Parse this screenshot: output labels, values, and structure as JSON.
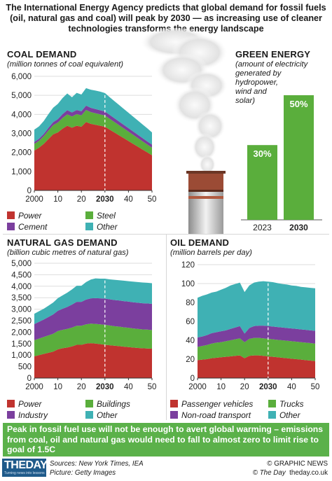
{
  "headline": "The International Energy Agency predicts that global demand for fossil fuels (oil, natural gas and coal) will peak by 2030 — as increasing use of cleaner technologies transforms the energy landscape",
  "colors": {
    "red": "#c0332f",
    "green": "#5aae3c",
    "purple": "#7b3f9e",
    "teal": "#3fb1b4",
    "banner": "#5bb14a",
    "logo_bg": "#1f5a8a"
  },
  "icons": {
    "photo": "smokestack-photo-icon",
    "logo": "the-day-logo-icon"
  },
  "coal": {
    "title": "COAL DEMAND",
    "subtitle": "(million tonnes of coal equivalent)",
    "legend": [
      {
        "name": "Power",
        "color": "#c0332f"
      },
      {
        "name": "Steel",
        "color": "#5aae3c"
      },
      {
        "name": "Cement",
        "color": "#7b3f9e"
      },
      {
        "name": "Other",
        "color": "#3fb1b4"
      }
    ]
  },
  "green": {
    "title": "GREEN ENERGY",
    "subtitle_lines": [
      "(amount of electricity",
      "generated by",
      "hydropower,",
      "wind and",
      "solar)"
    ]
  },
  "gas": {
    "title": "NATURAL GAS DEMAND",
    "subtitle": "(billion cubic metres of natural gas)",
    "legend": [
      {
        "name": "Power",
        "color": "#c0332f"
      },
      {
        "name": "Buildings",
        "color": "#5aae3c"
      },
      {
        "name": "Industry",
        "color": "#7b3f9e"
      },
      {
        "name": "Other",
        "color": "#3fb1b4"
      }
    ]
  },
  "oil": {
    "title": "OIL DEMAND",
    "subtitle": "(million barrels per day)",
    "legend": [
      {
        "name": "Passenger vehicles",
        "color": "#c0332f"
      },
      {
        "name": "Trucks",
        "color": "#5aae3c"
      },
      {
        "name": "Non-road transport",
        "color": "#7b3f9e"
      },
      {
        "name": "Other",
        "color": "#3fb1b4"
      }
    ]
  },
  "banner": "Peak in fossil fuel use will not be enough to avert global warming – emissions from coal, oil and natural gas would need to fall to almost zero to limit rise to goal of 1.5C",
  "footer": {
    "logo_text": "THEDAY",
    "logo_tagline": "Turning news into lessons",
    "sources": "Sources: New York Times, IEA",
    "picture": "Picture: Getty Images",
    "graphic_news": "© GRAPHIC NEWS",
    "the_day": "© The Day",
    "site": "theday.co.uk"
  },
  "chart_data": [
    {
      "id": "coal",
      "type": "area",
      "stacked": true,
      "title": "COAL DEMAND",
      "ylabel": "(million tonnes of coal equivalent)",
      "xlim": [
        2000,
        2050
      ],
      "ylim": [
        0,
        6000
      ],
      "yticks": [
        0,
        1000,
        2000,
        3000,
        4000,
        5000,
        6000
      ],
      "ytick_labels": [
        "0",
        "1,000",
        "2,000",
        "3,000",
        "4,000",
        "5,000",
        "6,000"
      ],
      "xticks": [
        2000,
        2010,
        2020,
        2030,
        2040,
        2050
      ],
      "xtick_labels": [
        "2000",
        "10",
        "20",
        "2030",
        "40",
        "50"
      ],
      "highlight_x": 2030,
      "x": [
        2000,
        2002,
        2004,
        2006,
        2008,
        2010,
        2012,
        2014,
        2016,
        2018,
        2020,
        2022,
        2024,
        2026,
        2028,
        2030,
        2032,
        2034,
        2036,
        2038,
        2040,
        2042,
        2044,
        2046,
        2048,
        2050
      ],
      "series": [
        {
          "name": "Power",
          "color": "#c0332f",
          "values": [
            2100,
            2250,
            2450,
            2700,
            2950,
            3050,
            3250,
            3400,
            3300,
            3400,
            3350,
            3600,
            3500,
            3450,
            3400,
            3350,
            3200,
            3050,
            2900,
            2750,
            2600,
            2450,
            2300,
            2150,
            2000,
            1850
          ]
        },
        {
          "name": "Steel",
          "color": "#5aae3c",
          "values": [
            350,
            360,
            400,
            450,
            480,
            520,
            560,
            600,
            590,
            610,
            600,
            630,
            620,
            610,
            600,
            590,
            570,
            550,
            530,
            510,
            490,
            470,
            450,
            430,
            410,
            400
          ]
        },
        {
          "name": "Cement",
          "color": "#7b3f9e",
          "values": [
            100,
            110,
            120,
            140,
            160,
            180,
            200,
            220,
            210,
            220,
            215,
            230,
            225,
            220,
            215,
            210,
            205,
            200,
            195,
            190,
            185,
            180,
            175,
            170,
            165,
            160
          ]
        },
        {
          "name": "Other",
          "color": "#3fb1b4",
          "values": [
            650,
            650,
            680,
            720,
            760,
            800,
            850,
            880,
            800,
            900,
            880,
            920,
            950,
            970,
            980,
            970,
            930,
            900,
            870,
            840,
            810,
            780,
            750,
            720,
            690,
            640
          ]
        }
      ]
    },
    {
      "id": "green",
      "type": "bar",
      "title": "GREEN ENERGY",
      "ylabel": "(amount of electricity generated by hydropower, wind and solar)",
      "categories": [
        "2023",
        "2030"
      ],
      "values": [
        30,
        50
      ],
      "value_labels": [
        "30%",
        "50%"
      ],
      "ylim": [
        0,
        50
      ],
      "color": "#5aae3c"
    },
    {
      "id": "gas",
      "type": "area",
      "stacked": true,
      "title": "NATURAL GAS DEMAND",
      "ylabel": "(billion cubic metres of natural gas)",
      "xlim": [
        2000,
        2050
      ],
      "ylim": [
        0,
        5000
      ],
      "yticks": [
        0,
        500,
        1000,
        1500,
        2000,
        2500,
        3000,
        3500,
        4000,
        4500,
        5000
      ],
      "ytick_labels": [
        "0",
        "500",
        "1,000",
        "1,500",
        "2,000",
        "2,500",
        "3,000",
        "3,500",
        "4,000",
        "4,500",
        "5,000"
      ],
      "xticks": [
        2000,
        2010,
        2020,
        2030,
        2040,
        2050
      ],
      "xtick_labels": [
        "2000",
        "10",
        "20",
        "2030",
        "40",
        "50"
      ],
      "highlight_x": 2030,
      "x": [
        2000,
        2002,
        2004,
        2006,
        2008,
        2010,
        2012,
        2014,
        2016,
        2018,
        2020,
        2022,
        2024,
        2026,
        2028,
        2030,
        2032,
        2034,
        2036,
        2038,
        2040,
        2042,
        2044,
        2046,
        2048,
        2050
      ],
      "series": [
        {
          "name": "Power",
          "color": "#c0332f",
          "values": [
            950,
            1000,
            1050,
            1100,
            1150,
            1250,
            1300,
            1330,
            1380,
            1450,
            1450,
            1500,
            1520,
            1500,
            1480,
            1450,
            1430,
            1410,
            1390,
            1370,
            1350,
            1330,
            1310,
            1300,
            1290,
            1280
          ]
        },
        {
          "name": "Buildings",
          "color": "#5aae3c",
          "values": [
            700,
            720,
            740,
            760,
            780,
            800,
            800,
            810,
            820,
            830,
            830,
            840,
            850,
            860,
            860,
            870,
            860,
            850,
            850,
            840,
            840,
            830,
            830,
            820,
            820,
            810
          ]
        },
        {
          "name": "Industry",
          "color": "#7b3f9e",
          "values": [
            700,
            730,
            760,
            800,
            840,
            880,
            920,
            960,
            1000,
            1040,
            1040,
            1080,
            1100,
            1120,
            1130,
            1140,
            1140,
            1140,
            1140,
            1140,
            1140,
            1140,
            1140,
            1140,
            1140,
            1140
          ]
        },
        {
          "name": "Other",
          "color": "#3fb1b4",
          "values": [
            450,
            460,
            470,
            490,
            520,
            550,
            580,
            620,
            660,
            700,
            700,
            760,
            820,
            860,
            860,
            870,
            870,
            880,
            880,
            890,
            890,
            900,
            900,
            900,
            900,
            900
          ]
        }
      ]
    },
    {
      "id": "oil",
      "type": "area",
      "stacked": true,
      "title": "OIL DEMAND",
      "ylabel": "(million barrels per day)",
      "xlim": [
        2000,
        2050
      ],
      "ylim": [
        0,
        120
      ],
      "yticks": [
        0,
        20,
        40,
        60,
        80,
        100,
        120
      ],
      "ytick_labels": [
        "0",
        "20",
        "40",
        "60",
        "80",
        "100",
        "120"
      ],
      "xticks": [
        2000,
        2010,
        2020,
        2030,
        2040,
        2050
      ],
      "xtick_labels": [
        "2000",
        "10",
        "20",
        "2030",
        "40",
        "50"
      ],
      "highlight_x": 2030,
      "x": [
        2000,
        2002,
        2004,
        2006,
        2008,
        2010,
        2012,
        2014,
        2016,
        2018,
        2020,
        2022,
        2024,
        2026,
        2028,
        2030,
        2032,
        2034,
        2036,
        2038,
        2040,
        2042,
        2044,
        2046,
        2048,
        2050
      ],
      "series": [
        {
          "name": "Passenger vehicles",
          "color": "#c0332f",
          "values": [
            19,
            19.5,
            20,
            21,
            21.5,
            22,
            22.5,
            23,
            23.5,
            24,
            21,
            23.5,
            24,
            24,
            23.5,
            23,
            22.5,
            22,
            21.5,
            21,
            20.5,
            20,
            19.5,
            19,
            18.5,
            18
          ]
        },
        {
          "name": "Trucks",
          "color": "#5aae3c",
          "values": [
            14,
            14.5,
            15,
            15.5,
            16,
            16,
            16.5,
            17,
            17.5,
            18,
            17,
            18,
            18.5,
            18.5,
            18.5,
            18.5,
            18.5,
            18.5,
            18.5,
            18.5,
            18.5,
            18.5,
            18.5,
            18.5,
            18.5,
            18.5
          ]
        },
        {
          "name": "Non-road transport",
          "color": "#7b3f9e",
          "values": [
            10,
            10,
            10.5,
            11,
            11,
            11.5,
            11.5,
            12,
            12.5,
            13,
            9,
            11.5,
            12.5,
            13,
            13.5,
            13.5,
            13.5,
            13.5,
            13.5,
            13.5,
            13.5,
            13.5,
            13.5,
            13.5,
            13.5,
            13.5
          ]
        },
        {
          "name": "Other",
          "color": "#3fb1b4",
          "values": [
            42,
            43,
            43,
            43,
            43,
            44,
            45,
            46,
            46,
            46,
            44,
            45,
            46,
            46.5,
            47,
            47,
            47,
            46.5,
            46,
            46,
            45.5,
            45.5,
            45,
            45,
            45,
            45
          ]
        }
      ]
    }
  ]
}
